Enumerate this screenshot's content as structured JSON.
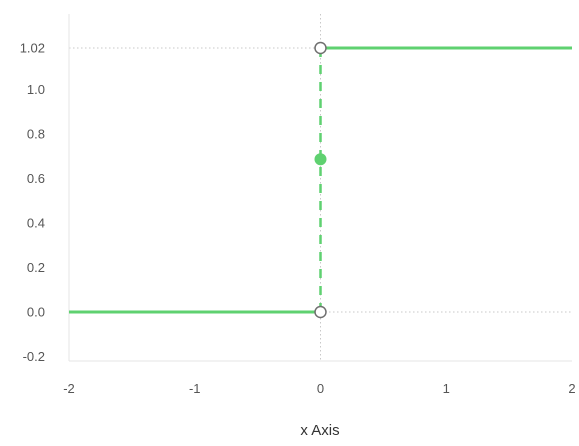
{
  "chart_data": {
    "type": "line",
    "xlabel": "x Axis",
    "ylabel": "",
    "xlim": [
      -2,
      2
    ],
    "ylim": [
      -0.2,
      1.09
    ],
    "x_ticks": [
      "-2",
      "-1",
      "0",
      "1",
      "2"
    ],
    "y_ticks": [
      "1.02",
      "1.0",
      "0.8",
      "0.6",
      "0.4",
      "0.2",
      "0.0",
      "-0.2"
    ],
    "grid": false,
    "reference_lines": {
      "horizontal": [
        1.02,
        0.0
      ],
      "vertical": [
        0
      ]
    },
    "series": [
      {
        "segments": [
          {
            "x": [
              -2,
              0
            ],
            "y": [
              0.0,
              0.0
            ],
            "style": "solid"
          },
          {
            "x": [
              0,
              2
            ],
            "y": [
              1.02,
              1.02
            ],
            "style": "solid"
          },
          {
            "x": [
              0,
              0
            ],
            "y": [
              0.0,
              1.02
            ],
            "style": "dashed"
          }
        ],
        "open_points": [
          {
            "x": 0,
            "y": 1.02
          },
          {
            "x": 0,
            "y": 0.0
          }
        ],
        "filled_points": [
          {
            "x": 0,
            "y": 0.59
          }
        ]
      }
    ],
    "colors": {
      "series": "#5fd170",
      "axis": "#e6e6e6",
      "reference": "#c8c8c8",
      "tick_text": "#555555",
      "title_text": "#333333"
    }
  }
}
